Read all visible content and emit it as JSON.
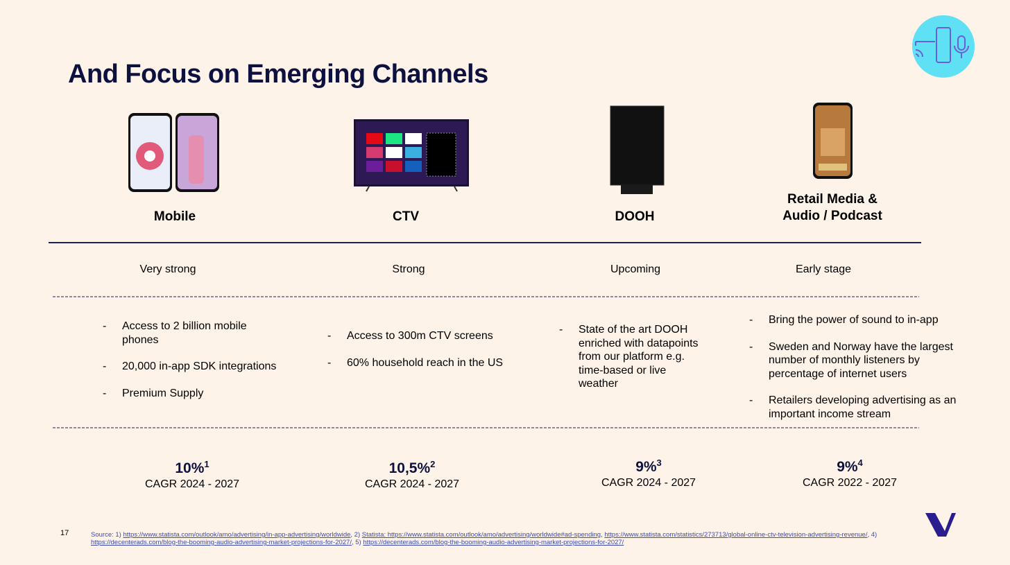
{
  "title": "And Focus on Emerging Channels",
  "channels": [
    {
      "name": "Mobile",
      "status": "Very strong",
      "bullets": [
        "Access to 2 billion mobile phones",
        "20,000 in-app SDK integrations",
        "Premium Supply"
      ],
      "growth": "10%",
      "note": "1",
      "period": "CAGR 2024 - 2027"
    },
    {
      "name": "CTV",
      "status": "Strong",
      "bullets": [
        "Access to 300m CTV screens",
        "60% household reach in the US"
      ],
      "growth": "10,5%",
      "note": "2",
      "period": "CAGR 2024 - 2027"
    },
    {
      "name": "DOOH",
      "status": "Upcoming",
      "bullets": [
        "State of the art DOOH enriched with datapoints from our platform e.g. time-based or live weather"
      ],
      "growth": "9%",
      "note": "3",
      "period": "CAGR 2024 - 2027"
    },
    {
      "name": "Retail Media &\nAudio / Podcast",
      "status": "Early stage",
      "bullets": [
        "Bring the power of sound to in-app",
        "Sweden and Norway have the largest number of monthly listeners by percentage of internet users",
        "Retailers developing advertising as an important income stream"
      ],
      "growth": "9%",
      "note": "4",
      "period": "CAGR 2022 - 2027"
    }
  ],
  "footer": {
    "page": "17",
    "source": [
      "Source:",
      " 1) ",
      "https://www.statista.com/outlook/amo/advertising/in-app-advertising/worldwide",
      ", 2) ",
      "Statista: https://www.statista.com/outlook/amo/advertising/worldwide#ad-spending",
      ", ",
      "https://www.statista.com/statistics/273713/global-online-ctv-television-advertising-revenue/",
      ", 4) ",
      "https://decenterads.com/blog-the-booming-audio-advertising-market-projections-for-2027/",
      ", 5) ",
      "https://decenterads.com/blog-the-booming-audio-advertising-market-projections-for-2027/"
    ]
  }
}
